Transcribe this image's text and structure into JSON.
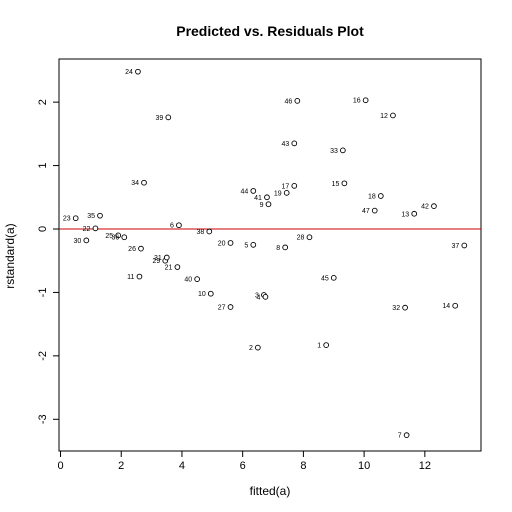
{
  "chart_data": {
    "type": "scatter",
    "title": "Predicted vs. Residuals Plot",
    "xlabel": "fitted(a)",
    "ylabel": "rstandard(a)",
    "xlim": [
      -0.05,
      13.85
    ],
    "ylim": [
      -3.5,
      2.68
    ],
    "x_ticks": [
      0,
      2,
      4,
      6,
      8,
      10,
      12
    ],
    "y_ticks": [
      -3,
      -2,
      -1,
      0,
      1,
      2
    ],
    "reference_line": {
      "y": 0,
      "color": "#cc0000"
    },
    "points": [
      {
        "label": "1",
        "x": 8.75,
        "y": -1.83
      },
      {
        "label": "2",
        "x": 6.5,
        "y": -1.87
      },
      {
        "label": "3",
        "x": 6.7,
        "y": -1.04
      },
      {
        "label": "4",
        "x": 6.75,
        "y": -1.07
      },
      {
        "label": "5",
        "x": 6.35,
        "y": -0.25
      },
      {
        "label": "6",
        "x": 3.9,
        "y": 0.06
      },
      {
        "label": "7",
        "x": 11.4,
        "y": -3.25
      },
      {
        "label": "8",
        "x": 7.4,
        "y": -0.29
      },
      {
        "label": "9",
        "x": 6.85,
        "y": 0.39
      },
      {
        "label": "10",
        "x": 4.95,
        "y": -1.02
      },
      {
        "label": "11",
        "x": 2.6,
        "y": -0.75
      },
      {
        "label": "12",
        "x": 10.95,
        "y": 1.79
      },
      {
        "label": "13",
        "x": 11.65,
        "y": 0.24
      },
      {
        "label": "14",
        "x": 13.0,
        "y": -1.21
      },
      {
        "label": "15",
        "x": 9.35,
        "y": 0.72
      },
      {
        "label": "16",
        "x": 10.05,
        "y": 2.03
      },
      {
        "label": "17",
        "x": 7.7,
        "y": 0.68
      },
      {
        "label": "18",
        "x": 10.55,
        "y": 0.52
      },
      {
        "label": "19",
        "x": 7.45,
        "y": 0.57
      },
      {
        "label": "20",
        "x": 5.6,
        "y": -0.22
      },
      {
        "label": "21",
        "x": 3.85,
        "y": -0.6
      },
      {
        "label": "22",
        "x": 1.15,
        "y": 0.01
      },
      {
        "label": "23",
        "x": 0.5,
        "y": 0.17
      },
      {
        "label": "24",
        "x": 2.55,
        "y": 2.48
      },
      {
        "label": "25",
        "x": 1.9,
        "y": -0.1
      },
      {
        "label": "26",
        "x": 2.65,
        "y": -0.31
      },
      {
        "label": "27",
        "x": 5.6,
        "y": -1.23
      },
      {
        "label": "28",
        "x": 8.2,
        "y": -0.13
      },
      {
        "label": "29",
        "x": 3.45,
        "y": -0.5
      },
      {
        "label": "30",
        "x": 0.85,
        "y": -0.18
      },
      {
        "label": "31",
        "x": 3.5,
        "y": -0.45
      },
      {
        "label": "32",
        "x": 11.35,
        "y": -1.24
      },
      {
        "label": "33",
        "x": 9.3,
        "y": 1.24
      },
      {
        "label": "34",
        "x": 2.75,
        "y": 0.73
      },
      {
        "label": "35",
        "x": 1.3,
        "y": 0.21
      },
      {
        "label": "36",
        "x": 2.1,
        "y": -0.13
      },
      {
        "label": "37",
        "x": 13.3,
        "y": -0.26
      },
      {
        "label": "38",
        "x": 4.9,
        "y": -0.04
      },
      {
        "label": "39",
        "x": 3.55,
        "y": 1.76
      },
      {
        "label": "40",
        "x": 4.5,
        "y": -0.79
      },
      {
        "label": "41",
        "x": 6.8,
        "y": 0.5
      },
      {
        "label": "42",
        "x": 12.3,
        "y": 0.36
      },
      {
        "label": "43",
        "x": 7.7,
        "y": 1.35
      },
      {
        "label": "44",
        "x": 6.35,
        "y": 0.6
      },
      {
        "label": "45",
        "x": 9.0,
        "y": -0.77
      },
      {
        "label": "46",
        "x": 7.8,
        "y": 2.02
      },
      {
        "label": "47",
        "x": 10.35,
        "y": 0.29
      }
    ]
  }
}
